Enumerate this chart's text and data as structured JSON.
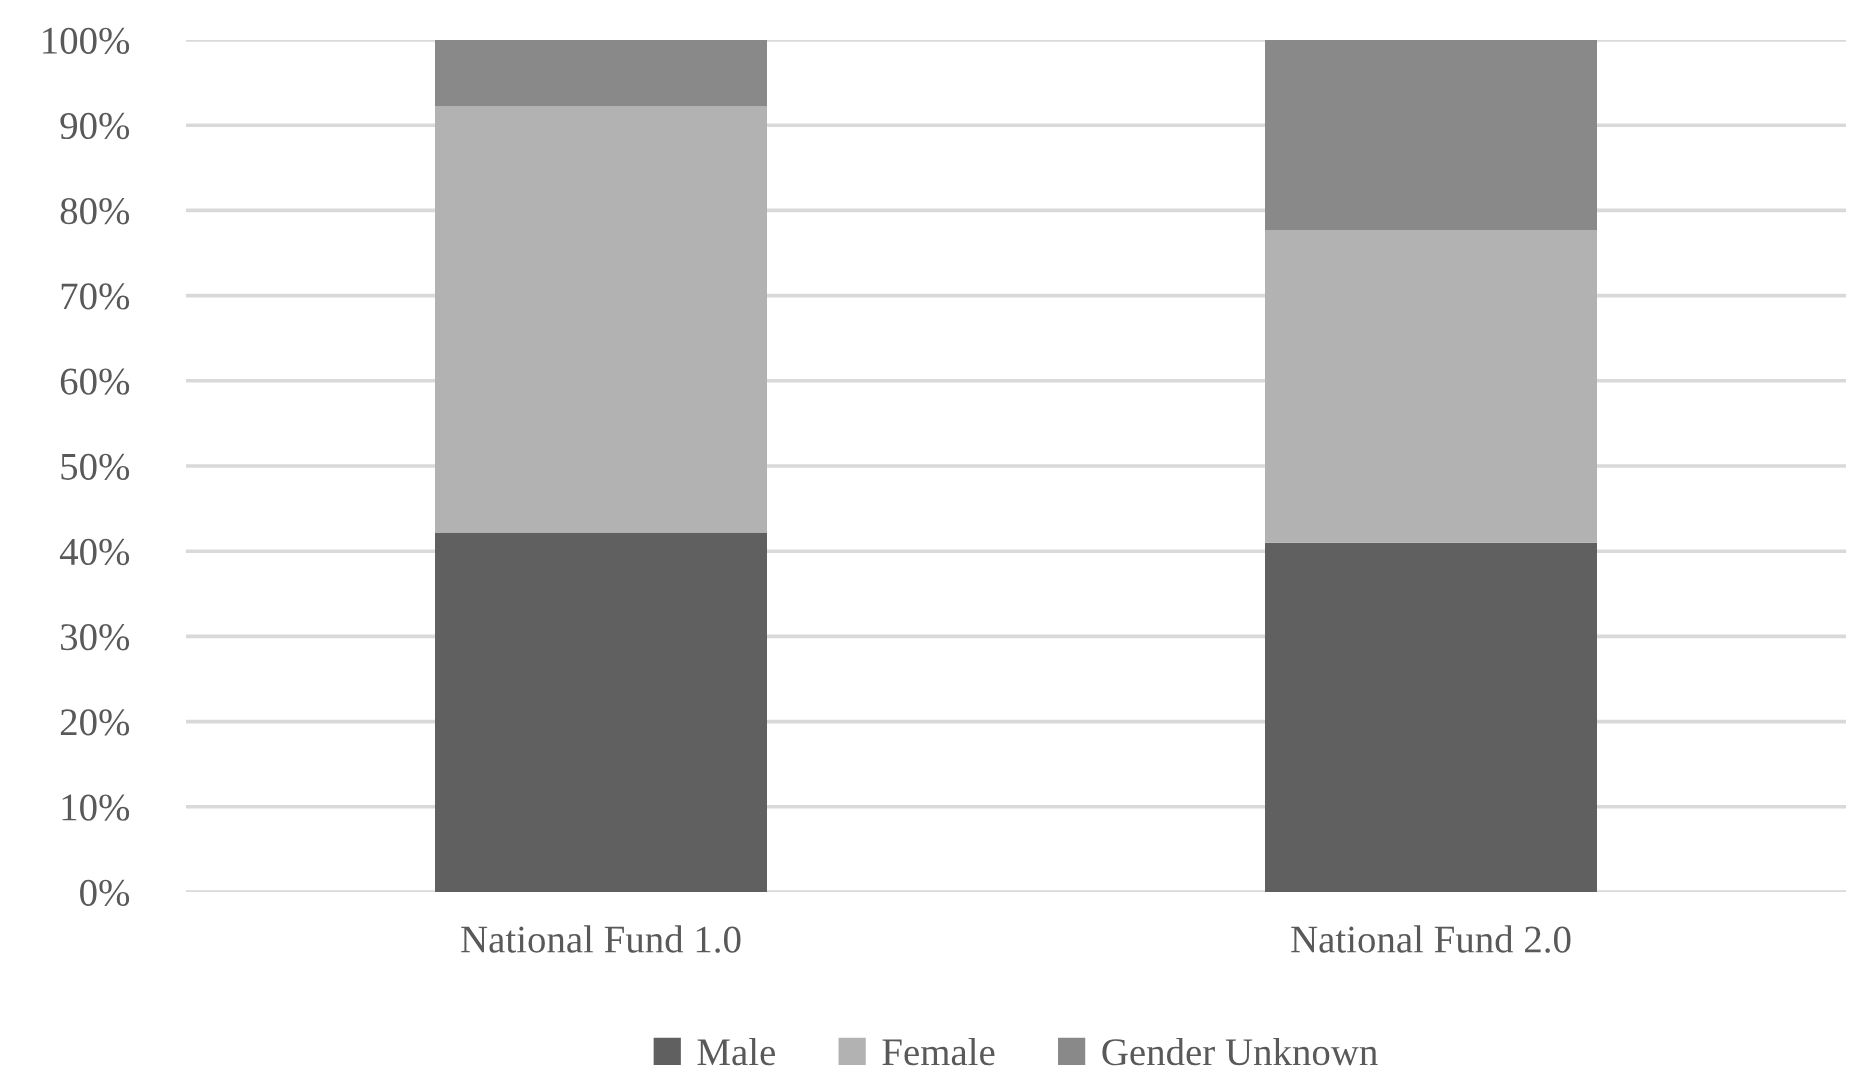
{
  "chart_data": {
    "type": "bar",
    "stacked": true,
    "categories": [
      "National Fund 1.0",
      "National Fund 2.0"
    ],
    "series": [
      {
        "name": "Male",
        "color": "#606060",
        "values": [
          0.422,
          0.41
        ]
      },
      {
        "name": "Female",
        "color": "#b2b2b2",
        "values": [
          0.5,
          0.367
        ]
      },
      {
        "name": "Gender Unknown",
        "color": "#898989",
        "values": [
          0.078,
          0.223
        ]
      }
    ],
    "ylim": [
      0,
      1
    ],
    "yticks": [
      {
        "value": 0,
        "label": "0%"
      },
      {
        "value": 0.1,
        "label": "10%"
      },
      {
        "value": 0.2,
        "label": "20%"
      },
      {
        "value": 0.3,
        "label": "30%"
      },
      {
        "value": 0.4,
        "label": "40%"
      },
      {
        "value": 0.5,
        "label": "50%"
      },
      {
        "value": 0.6,
        "label": "60%"
      },
      {
        "value": 0.7,
        "label": "70%"
      },
      {
        "value": 0.8,
        "label": "80%"
      },
      {
        "value": 0.9,
        "label": "90%"
      },
      {
        "value": 1,
        "label": "100%"
      }
    ],
    "grid": "y",
    "legend": "bottom"
  }
}
